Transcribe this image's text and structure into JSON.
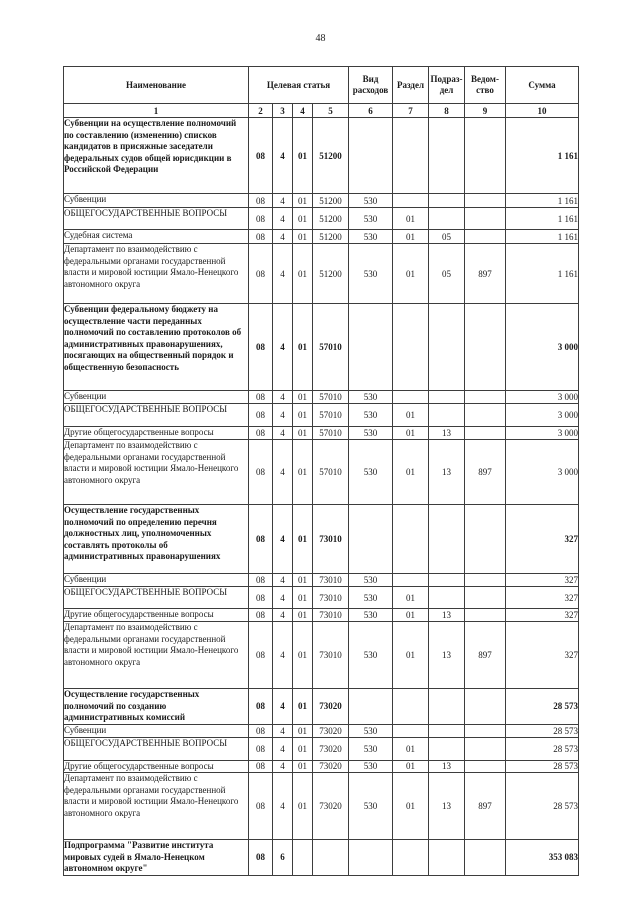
{
  "page_number": "48",
  "table": {
    "header": {
      "name": "Наименование",
      "target_article": "Целевая статья",
      "expense_type": "Вид\nрасходов",
      "section": "Раздел",
      "subsection": "Подраз-\nдел",
      "agency": "Ведом-\nство",
      "sum": "Сумма"
    },
    "column_numbers": [
      "1",
      "2",
      "3",
      "4",
      "5",
      "6",
      "7",
      "8",
      "9",
      "10"
    ],
    "rows": [
      {
        "bold": true,
        "name": "Субвенции на осуществление полномочий по составлению (изменению) списков кандидатов в присяжные заседатели федеральных судов общей юрисдикции в Российской Федерации",
        "codes": [
          "08",
          "4",
          "01",
          "51200",
          "",
          "",
          "",
          ""
        ],
        "sum": "1 161"
      },
      {
        "bold": false,
        "name": "Субвенции",
        "codes": [
          "08",
          "4",
          "01",
          "51200",
          "530",
          "",
          "",
          ""
        ],
        "sum": "1 161"
      },
      {
        "bold": false,
        "name": "ОБЩЕГОСУДАРСТВЕННЫЕ ВОПРОСЫ",
        "codes": [
          "08",
          "4",
          "01",
          "51200",
          "530",
          "01",
          "",
          ""
        ],
        "sum": "1 161"
      },
      {
        "bold": false,
        "name": "Судебная система",
        "codes": [
          "08",
          "4",
          "01",
          "51200",
          "530",
          "01",
          "05",
          ""
        ],
        "sum": "1 161"
      },
      {
        "bold": false,
        "name": "Департамент по взаимодействию с федеральными органами государственной власти и мировой юстиции Ямало-Ненецкого автономного округа",
        "codes": [
          "08",
          "4",
          "01",
          "51200",
          "530",
          "01",
          "05",
          "897"
        ],
        "sum": "1 161"
      },
      {
        "bold": true,
        "name": "Субвенции федеральному бюджету на осуществление части переданных полномочий по составлению протоколов об административных правонарушениях, посягающих на общественный порядок и общественную безопасность",
        "codes": [
          "08",
          "4",
          "01",
          "57010",
          "",
          "",
          "",
          ""
        ],
        "sum": "3 000"
      },
      {
        "bold": false,
        "name": "Субвенции",
        "codes": [
          "08",
          "4",
          "01",
          "57010",
          "530",
          "",
          "",
          ""
        ],
        "sum": "3 000"
      },
      {
        "bold": false,
        "name": "ОБЩЕГОСУДАРСТВЕННЫЕ ВОПРОСЫ",
        "codes": [
          "08",
          "4",
          "01",
          "57010",
          "530",
          "01",
          "",
          ""
        ],
        "sum": "3 000"
      },
      {
        "bold": false,
        "name": "Другие общегосударственные вопросы",
        "codes": [
          "08",
          "4",
          "01",
          "57010",
          "530",
          "01",
          "13",
          ""
        ],
        "sum": "3 000"
      },
      {
        "bold": false,
        "name": "Департамент по взаимодействию с федеральными органами государственной власти и мировой юстиции Ямало-Ненецкого автономного округа",
        "codes": [
          "08",
          "4",
          "01",
          "57010",
          "530",
          "01",
          "13",
          "897"
        ],
        "sum": "3 000"
      },
      {
        "bold": true,
        "name": "Осуществление государственных полномочий по определению перечня должностных лиц, уполномоченных составлять протоколы об административных правонарушениях",
        "codes": [
          "08",
          "4",
          "01",
          "73010",
          "",
          "",
          "",
          ""
        ],
        "sum": "327"
      },
      {
        "bold": false,
        "name": "Субвенции",
        "codes": [
          "08",
          "4",
          "01",
          "73010",
          "530",
          "",
          "",
          ""
        ],
        "sum": "327"
      },
      {
        "bold": false,
        "name": "ОБЩЕГОСУДАРСТВЕННЫЕ ВОПРОСЫ",
        "codes": [
          "08",
          "4",
          "01",
          "73010",
          "530",
          "01",
          "",
          ""
        ],
        "sum": "327"
      },
      {
        "bold": false,
        "name": "Другие общегосударственные вопросы",
        "codes": [
          "08",
          "4",
          "01",
          "73010",
          "530",
          "01",
          "13",
          ""
        ],
        "sum": "327"
      },
      {
        "bold": false,
        "name": "Департамент по взаимодействию с федеральными органами государственной власти и мировой юстиции Ямало-Ненецкого автономного округа",
        "codes": [
          "08",
          "4",
          "01",
          "73010",
          "530",
          "01",
          "13",
          "897"
        ],
        "sum": "327"
      },
      {
        "bold": true,
        "name": "Осуществление государственных полномочий по созданию административных комиссий",
        "codes": [
          "08",
          "4",
          "01",
          "73020",
          "",
          "",
          "",
          ""
        ],
        "sum": "28 573"
      },
      {
        "bold": false,
        "name": "Субвенции",
        "codes": [
          "08",
          "4",
          "01",
          "73020",
          "530",
          "",
          "",
          ""
        ],
        "sum": "28 573"
      },
      {
        "bold": false,
        "name": "ОБЩЕГОСУДАРСТВЕННЫЕ ВОПРОСЫ",
        "codes": [
          "08",
          "4",
          "01",
          "73020",
          "530",
          "01",
          "",
          ""
        ],
        "sum": "28 573"
      },
      {
        "bold": false,
        "name": "Другие общегосударственные вопросы",
        "codes": [
          "08",
          "4",
          "01",
          "73020",
          "530",
          "01",
          "13",
          ""
        ],
        "sum": "28 573"
      },
      {
        "bold": false,
        "name": "Департамент по взаимодействию с федеральными органами государственной власти и мировой юстиции Ямало-Ненецкого автономного округа",
        "codes": [
          "08",
          "4",
          "01",
          "73020",
          "530",
          "01",
          "13",
          "897"
        ],
        "sum": "28 573"
      },
      {
        "bold": true,
        "name": "Подпрограмма \"Развитие института мировых судей в Ямало-Ненецком автономном округе\"",
        "codes": [
          "08",
          "6",
          "",
          "",
          "",
          "",
          "",
          ""
        ],
        "sum": "353 083"
      }
    ]
  }
}
